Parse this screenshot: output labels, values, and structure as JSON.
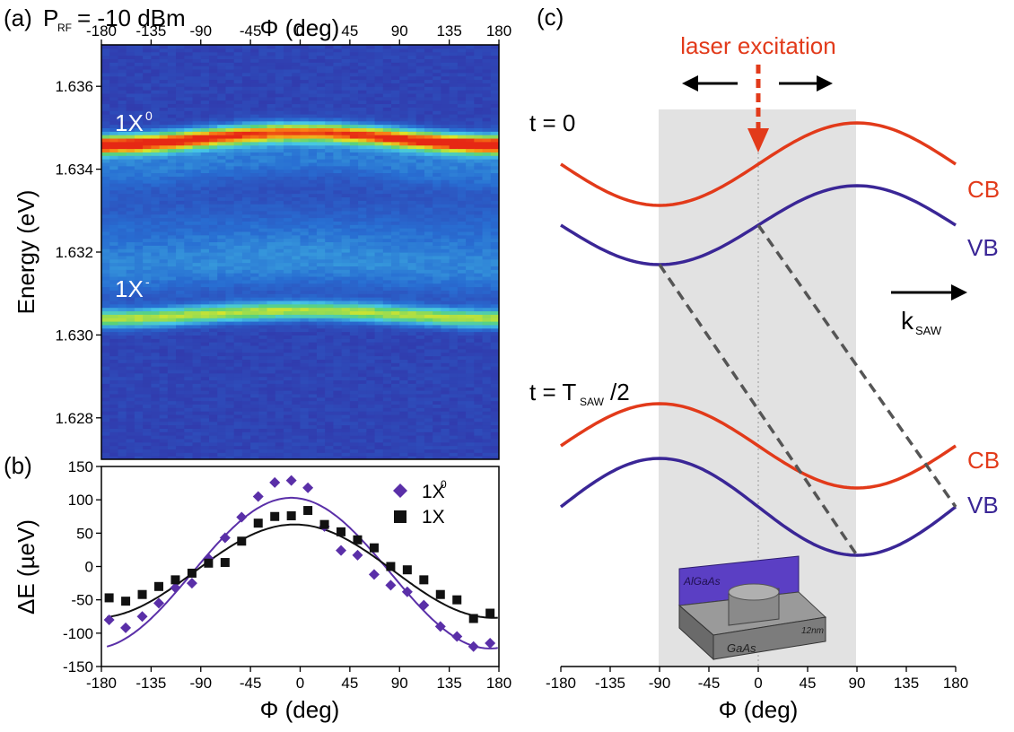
{
  "colors": {
    "purple": "#5a2fa8",
    "black": "#111111",
    "cb": "#e23a1a",
    "vb": "#3a2696",
    "laser": "#e23a1a",
    "shade": "#e2e2e2",
    "dash": "#555555"
  },
  "panel_a": {
    "label": "(a)",
    "power_label": "P",
    "power_sub": "RF",
    "power_value": "= -10 dBm",
    "top_axis_label": "Φ (deg)",
    "ylabel": "Energy (eV)",
    "annot_x0": "1X",
    "annot_x0_sup": "0",
    "annot_xm": "1X",
    "annot_xm_sup": "-"
  },
  "panel_b": {
    "label": "(b)",
    "xlabel": "Φ (deg)",
    "ylabel": "ΔE (µeV)",
    "legend": [
      {
        "name": "1X",
        "sup": "0",
        "marker": "diamond"
      },
      {
        "name": "1X",
        "sup": "-",
        "marker": "square"
      }
    ]
  },
  "panel_c": {
    "label": "(c)",
    "laser_label": "laser excitation",
    "t0_label": "t = 0",
    "t_half_label": "t = T",
    "t_half_sub": "SAW",
    "t_half_tail": "/2",
    "cb_label": "CB",
    "vb_label": "VB",
    "k_label": "k",
    "k_sub": "SAW",
    "xlabel": "Φ (deg)",
    "inset": {
      "top_layer": "AlGaAs",
      "bottom_layer": "GaAs",
      "scale": "12nm"
    }
  },
  "chart_data": [
    {
      "type": "heatmap",
      "panel": "(a)",
      "ylabel": "Energy (eV)",
      "xlabel": "Φ (deg)",
      "xlim": [
        -180,
        180
      ],
      "ylim": [
        1.627,
        1.637
      ],
      "x_ticks": [
        -180,
        -135,
        -90,
        -45,
        0,
        45,
        90,
        135,
        180
      ],
      "y_ticks": [
        1.628,
        1.63,
        1.632,
        1.634,
        1.636
      ],
      "y_tick_labels": [
        "1.628",
        "1.630",
        "1.632",
        "1.634",
        "1.636"
      ],
      "x_tick_labels": [
        "-180",
        "-135",
        "-90",
        "-45",
        "0",
        "45",
        "90",
        "135",
        "180"
      ],
      "bands": [
        {
          "name": "1X0",
          "center_eV_at_phi0": 1.6349,
          "center_eV_at_phi180": 1.6346,
          "amplitude_ueV": 100
        },
        {
          "name": "1X-",
          "center_eV_at_phi0": 1.6306,
          "center_eV_at_phi180": 1.6304,
          "amplitude_ueV": 70
        }
      ]
    },
    {
      "type": "scatter",
      "panel": "(b)",
      "xlabel": "Φ (deg)",
      "ylabel": "ΔE (µeV)",
      "xlim": [
        -180,
        180
      ],
      "ylim": [
        -150,
        150
      ],
      "x_ticks": [
        -180,
        -135,
        -90,
        -45,
        0,
        45,
        90,
        135,
        180
      ],
      "y_ticks": [
        -150,
        -100,
        -50,
        0,
        50,
        100,
        150
      ],
      "series": [
        {
          "name": "1X0",
          "marker": "diamond",
          "x": [
            -173,
            -158,
            -143,
            -128,
            -113,
            -98,
            -83,
            -68,
            -53,
            -38,
            -23,
            -8,
            7,
            22,
            37,
            52,
            67,
            82,
            97,
            112,
            127,
            142,
            157,
            172
          ],
          "y": [
            -80,
            -92,
            -75,
            -55,
            -32,
            -25,
            12,
            43,
            74,
            105,
            126,
            129,
            118,
            60,
            24,
            17,
            -12,
            -28,
            -38,
            -58,
            -90,
            -105,
            -120,
            -115
          ],
          "fit": {
            "amplitude": 113,
            "phase_deg": -8,
            "offset": -10
          }
        },
        {
          "name": "1X-",
          "marker": "square",
          "x": [
            -173,
            -158,
            -143,
            -128,
            -113,
            -98,
            -83,
            -68,
            -53,
            -38,
            -23,
            -8,
            7,
            22,
            37,
            52,
            67,
            82,
            97,
            112,
            127,
            142,
            157,
            172
          ],
          "y": [
            -47,
            -52,
            -42,
            -30,
            -20,
            -10,
            5,
            6,
            38,
            65,
            75,
            76,
            84,
            63,
            52,
            40,
            28,
            0,
            -5,
            -20,
            -42,
            -50,
            -78,
            -70
          ],
          "fit": {
            "amplitude": 70,
            "phase_deg": -5,
            "offset": -7
          }
        }
      ]
    },
    {
      "type": "line",
      "panel": "(c)",
      "xlabel": "Φ (deg)",
      "xlim": [
        -180,
        180
      ],
      "x_ticks": [
        -180,
        -135,
        -90,
        -45,
        0,
        45,
        90,
        135,
        180
      ],
      "series": [
        {
          "name": "CB",
          "time": "t = 0",
          "minimum_deg": -90,
          "maximum_deg": 90
        },
        {
          "name": "VB",
          "time": "t = 0",
          "minimum_deg": -90,
          "maximum_deg": 90
        },
        {
          "name": "CB",
          "time": "t = T_SAW/2",
          "minimum_deg": 90,
          "maximum_deg": -90
        },
        {
          "name": "VB",
          "time": "t = T_SAW/2",
          "minimum_deg": 90,
          "maximum_deg": -90
        }
      ]
    }
  ]
}
